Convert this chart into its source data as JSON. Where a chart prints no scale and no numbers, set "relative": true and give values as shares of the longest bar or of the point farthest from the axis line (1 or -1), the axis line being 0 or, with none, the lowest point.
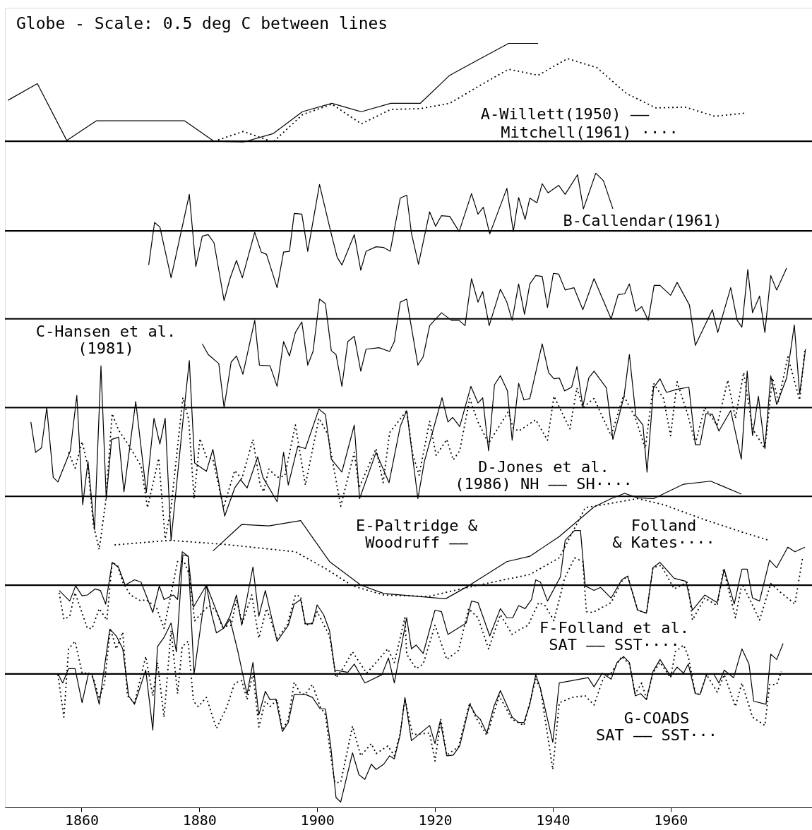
{
  "chart_data": {
    "type": "line",
    "title": "Globe - Scale: 0.5 deg C between lines",
    "relative": true,
    "grid": false,
    "xlim": [
      1847,
      1984
    ],
    "xticks": [
      1860,
      1880,
      1900,
      1920,
      1940,
      1960
    ],
    "ref_lines": [
      {
        "axis": "y",
        "value": 0.871,
        "color": "#000000"
      },
      {
        "axis": "y",
        "value": 0.753,
        "color": "#000000"
      },
      {
        "axis": "y",
        "value": 0.637,
        "color": "#000000"
      },
      {
        "axis": "y",
        "value": 0.52,
        "color": "#000000"
      },
      {
        "axis": "y",
        "value": 0.403,
        "color": "#000000"
      },
      {
        "axis": "y",
        "value": 0.286,
        "color": "#000000"
      },
      {
        "axis": "y",
        "value": 0.169,
        "color": "#000000"
      }
    ],
    "annotations": [
      "A-Willett(1950) ——",
      "Mitchell(1961) ····",
      "B-Callendar(1961)",
      "C-Hansen et al.\n(1981)",
      "D-Jones et al.\n(1986) NH —— SH····",
      "E-Paltridge &\nWoodruff ——",
      "Folland\n& Kates····",
      "F-Folland et al.\nSAT —— SST····",
      "G-COADS\nSAT —— SST···"
    ],
    "series": [
      {
        "color": "#000000",
        "line_style": "solid",
        "x": [
          1847.5,
          1852.5,
          1857.5,
          1862.5,
          1867.5,
          1872.5,
          1877.5,
          1882.5,
          1887.5,
          1892.5,
          1897.5,
          1902.5,
          1907.5,
          1912.5,
          1917.5,
          1922.5,
          1927.5,
          1932.5,
          1937.5
        ],
        "values": [
          0.925,
          0.947,
          0.872,
          0.898,
          0.898,
          0.898,
          0.898,
          0.871,
          0.87,
          0.881,
          0.91,
          0.921,
          0.91,
          0.921,
          0.921,
          0.958,
          0.979,
          1.0,
          1.0
        ]
      },
      {
        "color": "#000000",
        "line_style": "dotted",
        "x": [
          1882.5,
          1887.5,
          1892.5,
          1897.5,
          1902.5,
          1907.5,
          1912.5,
          1917.5,
          1922.5,
          1927.5,
          1932.5,
          1937.5,
          1942.5,
          1947.5,
          1952.5,
          1957.5,
          1962.5,
          1967.5,
          1972.5
        ],
        "values": [
          0.871,
          0.884,
          0.87,
          0.906,
          0.92,
          0.894,
          0.913,
          0.914,
          0.921,
          0.944,
          0.966,
          0.958,
          0.98,
          0.968,
          0.934,
          0.915,
          0.916,
          0.904,
          0.908
        ]
      },
      {
        "color": "#000000",
        "line_style": "solid",
        "x": [
          1871.4,
          1872.4,
          1873.3,
          1875.2,
          1878.3,
          1879.4,
          1880.5,
          1881.5,
          1882.5,
          1884.2,
          1885.2,
          1886.3,
          1887.3,
          1889.4,
          1890.5,
          1891.4,
          1893.2,
          1894.3,
          1895.3,
          1896.1,
          1897.4,
          1898.4,
          1900.4,
          1902.3,
          1903.4,
          1904.2,
          1906.3,
          1907.4,
          1908.3,
          1910,
          1911.3,
          1912.4,
          1914.1,
          1915.2,
          1916,
          1917.2,
          1919.1,
          1920.1,
          1921.1,
          1922.5,
          1924.1,
          1926.2,
          1927.3,
          1928.2,
          1929.3,
          1932.2,
          1933.3,
          1934.2,
          1935.3,
          1936.1,
          1937.3,
          1938.2,
          1939.2,
          1941,
          1942.1,
          1944.2,
          1945.2,
          1947.3,
          1948.6,
          1950.2
        ],
        "values": [
          0.708,
          0.764,
          0.758,
          0.691,
          0.801,
          0.706,
          0.746,
          0.748,
          0.737,
          0.661,
          0.69,
          0.714,
          0.691,
          0.751,
          0.725,
          0.722,
          0.678,
          0.725,
          0.726,
          0.776,
          0.775,
          0.726,
          0.814,
          0.752,
          0.718,
          0.708,
          0.748,
          0.701,
          0.726,
          0.732,
          0.731,
          0.726,
          0.796,
          0.8,
          0.75,
          0.709,
          0.778,
          0.759,
          0.773,
          0.772,
          0.752,
          0.802,
          0.775,
          0.784,
          0.749,
          0.809,
          0.752,
          0.797,
          0.768,
          0.796,
          0.79,
          0.815,
          0.803,
          0.813,
          0.801,
          0.827,
          0.782,
          0.829,
          0.819,
          0.782
        ]
      },
      {
        "color": "#000000",
        "line_style": "solid",
        "x": [
          1880.5,
          1881.5,
          1883.3,
          1884.2,
          1885.4,
          1886.3,
          1887.4,
          1889.4,
          1890.2,
          1892,
          1893.2,
          1894.3,
          1895.3,
          1896.3,
          1897.4,
          1898.4,
          1899.3,
          1900.4,
          1901.4,
          1902.4,
          1903.2,
          1904.2,
          1905.2,
          1906.3,
          1907.4,
          1908.3,
          1910.5,
          1912.3,
          1913.1,
          1914.1,
          1915.2,
          1915.8,
          1917.1,
          1918,
          1919.1,
          1921.1,
          1922.8,
          1924.1,
          1925.1,
          1926.2,
          1927.3,
          1928.1,
          1929.2,
          1931.1,
          1932.2,
          1933.1,
          1934.2,
          1935.2,
          1936.1,
          1937.1,
          1938.2,
          1939.1,
          1940.1,
          1941,
          1942.1,
          1943.6,
          1945.1,
          1947,
          1948.2,
          1949.9,
          1951.1,
          1952.2,
          1953,
          1954.1,
          1955.1,
          1956.2,
          1957.2,
          1958.2,
          1960,
          1961.1,
          1963.2,
          1964.2,
          1967.1,
          1968,
          1970.2,
          1971.3,
          1972.1,
          1973.1,
          1973.9,
          1975.1,
          1976,
          1977,
          1978,
          1979.7
        ],
        "values": [
          0.604,
          0.59,
          0.578,
          0.52,
          0.58,
          0.588,
          0.564,
          0.635,
          0.576,
          0.575,
          0.548,
          0.607,
          0.588,
          0.619,
          0.633,
          0.576,
          0.594,
          0.663,
          0.657,
          0.595,
          0.59,
          0.548,
          0.607,
          0.614,
          0.568,
          0.597,
          0.599,
          0.594,
          0.607,
          0.659,
          0.663,
          0.635,
          0.576,
          0.587,
          0.628,
          0.645,
          0.635,
          0.635,
          0.628,
          0.69,
          0.659,
          0.673,
          0.628,
          0.676,
          0.659,
          0.635,
          0.683,
          0.643,
          0.683,
          0.694,
          0.693,
          0.652,
          0.697,
          0.696,
          0.675,
          0.678,
          0.649,
          0.69,
          0.668,
          0.637,
          0.669,
          0.67,
          0.683,
          0.647,
          0.653,
          0.635,
          0.681,
          0.681,
          0.668,
          0.685,
          0.655,
          0.602,
          0.649,
          0.619,
          0.678,
          0.635,
          0.626,
          0.702,
          0.645,
          0.667,
          0.619,
          0.694,
          0.675,
          0.704
        ]
      },
      {
        "color": "#000000",
        "line_style": "solid",
        "x": [
          1851.4,
          1852.2,
          1853.2,
          1854.1,
          1855.2,
          1856,
          1858.1,
          1859.2,
          1860.2,
          1861.1,
          1862.2,
          1863.3,
          1864.2,
          1865.1,
          1866.3,
          1867.2,
          1869.2,
          1871,
          1872.3,
          1873.3,
          1874.2,
          1875.2,
          1877.3,
          1878.3,
          1879.2,
          1881.2,
          1882.3,
          1884.3,
          1886,
          1887,
          1888.1,
          1889.9,
          1890.8,
          1893.2,
          1894.3,
          1895.1,
          1896.7,
          1898,
          1900.3,
          1901.4,
          1902.4,
          1904.2,
          1906.3,
          1907.2,
          1910,
          1912.2,
          1914.1,
          1915.2,
          1917.1,
          1918.2,
          1921.2,
          1922.2,
          1923,
          1924.2,
          1926.1,
          1927.3,
          1928.1,
          1929.1,
          1930.1,
          1931.1,
          1932.3,
          1933.1,
          1934.2,
          1935.1,
          1936.1,
          1938.2,
          1939.3,
          1940.2,
          1941.1,
          1942,
          1943.2,
          1944.1,
          1945.1,
          1946.1,
          1947,
          1949.1,
          1950.2,
          1952.1,
          1953,
          1954.1,
          1955.3,
          1956,
          1957.1,
          1958.2,
          1959.3,
          1961.1,
          1963.1,
          1964.2,
          1965,
          1966,
          1967.1,
          1968.2,
          1970.2,
          1972,
          1973,
          1973.9,
          1974.9,
          1976,
          1977,
          1978,
          1979.7,
          1981,
          1981.9,
          1982.9
        ],
        "values": [
          0.501,
          0.461,
          0.467,
          0.52,
          0.428,
          0.422,
          0.463,
          0.536,
          0.392,
          0.449,
          0.359,
          0.575,
          0.4,
          0.478,
          0.481,
          0.409,
          0.528,
          0.408,
          0.506,
          0.472,
          0.506,
          0.345,
          0.509,
          0.582,
          0.447,
          0.436,
          0.465,
          0.377,
          0.414,
          0.425,
          0.414,
          0.455,
          0.428,
          0.396,
          0.461,
          0.418,
          0.469,
          0.466,
          0.518,
          0.511,
          0.452,
          0.435,
          0.497,
          0.4,
          0.461,
          0.421,
          0.495,
          0.516,
          0.4,
          0.449,
          0.533,
          0.501,
          0.507,
          0.495,
          0.548,
          0.526,
          0.533,
          0.463,
          0.55,
          0.562,
          0.542,
          0.477,
          0.552,
          0.53,
          0.532,
          0.604,
          0.566,
          0.558,
          0.559,
          0.542,
          0.547,
          0.574,
          0.521,
          0.559,
          0.568,
          0.546,
          0.478,
          0.535,
          0.59,
          0.509,
          0.497,
          0.435,
          0.546,
          0.558,
          0.54,
          0.544,
          0.547,
          0.471,
          0.471,
          0.512,
          0.511,
          0.489,
          0.516,
          0.452,
          0.568,
          0.483,
          0.535,
          0.466,
          0.562,
          0.524,
          0.559,
          0.629,
          0.538,
          0.597
        ]
      },
      {
        "color": "#000000",
        "line_style": "dotted",
        "x": [
          1857.8,
          1858.9,
          1860.1,
          1861.1,
          1862,
          1863,
          1864.1,
          1865.2,
          1866.3,
          1867.8,
          1870.1,
          1871.2,
          1873.1,
          1874.2,
          1875.2,
          1877.2,
          1878.2,
          1879.1,
          1880.1,
          1881.2,
          1882.3,
          1884.1,
          1886,
          1887.2,
          1889.1,
          1890.3,
          1890.9,
          1891.8,
          1893.2,
          1894.5,
          1896.3,
          1898,
          1900.3,
          1901.8,
          1904,
          1906.3,
          1907.1,
          1910,
          1911.2,
          1912.3,
          1915.2,
          1916.2,
          1917.3,
          1919.1,
          1920.2,
          1922,
          1923.1,
          1924.2,
          1925.9,
          1927.3,
          1929.1,
          1932.4,
          1933.3,
          1934.2,
          1937.1,
          1939.1,
          1940.2,
          1942.9,
          1944.1,
          1945.1,
          1947,
          1949.9,
          1952,
          1954,
          1955.7,
          1957.1,
          1958.8,
          1960,
          1961.1,
          1962.9,
          1964.2,
          1965.8,
          1967.9,
          1969.7,
          1971,
          1972.4,
          1973.9,
          1976,
          1977.3,
          1978.3,
          1979.9,
          1981.9,
          1982.8
        ],
        "values": [
          0.461,
          0.44,
          0.475,
          0.442,
          0.366,
          0.333,
          0.396,
          0.512,
          0.49,
          0.473,
          0.443,
          0.388,
          0.453,
          0.347,
          0.388,
          0.533,
          0.504,
          0.4,
          0.479,
          0.455,
          0.452,
          0.388,
          0.437,
          0.426,
          0.478,
          0.419,
          0.409,
          0.439,
          0.428,
          0.43,
          0.497,
          0.418,
          0.506,
          0.485,
          0.39,
          0.461,
          0.414,
          0.466,
          0.421,
          0.487,
          0.516,
          0.459,
          0.431,
          0.502,
          0.457,
          0.478,
          0.451,
          0.463,
          0.532,
          0.501,
          0.473,
          0.514,
          0.493,
          0.489,
          0.504,
          0.477,
          0.535,
          0.492,
          0.546,
          0.52,
          0.532,
          0.483,
          0.536,
          0.507,
          0.466,
          0.552,
          0.532,
          0.483,
          0.554,
          0.511,
          0.473,
          0.52,
          0.497,
          0.556,
          0.506,
          0.566,
          0.492,
          0.466,
          0.559,
          0.528,
          0.587,
          0.53,
          0.597
        ]
      },
      {
        "color": "#000000",
        "line_style": "solid",
        "x": [
          1882.3,
          1887.2,
          1891.8,
          1897.2,
          1902.1,
          1907.4,
          1911.3,
          1921.8,
          1925.7,
          1932.2,
          1936.1,
          1941.1,
          1947,
          1949.9,
          1952.2,
          1954.4,
          1957.1,
          1962.2,
          1966.8,
          1972
        ],
        "values": [
          0.331,
          0.366,
          0.364,
          0.371,
          0.317,
          0.286,
          0.275,
          0.268,
          0.285,
          0.317,
          0.324,
          0.35,
          0.389,
          0.4,
          0.407,
          0.401,
          0.4,
          0.419,
          0.423,
          0.406
        ]
      },
      {
        "color": "#000000",
        "line_style": "dotted",
        "x": [
          1865.6,
          1875,
          1883.9,
          1896.3,
          1901.6,
          1906,
          1911.3,
          1918.9,
          1923.3,
          1928.6,
          1936.1,
          1941.1,
          1945.5,
          1954.4,
          1958.8,
          1965.5,
          1972.1,
          1976.7
        ],
        "values": [
          0.339,
          0.345,
          0.34,
          0.33,
          0.307,
          0.285,
          0.273,
          0.271,
          0.279,
          0.288,
          0.3,
          0.322,
          0.388,
          0.4,
          0.392,
          0.373,
          0.356,
          0.345
        ]
      },
      {
        "color": "#000000",
        "line_style": "solid",
        "x": [
          1856.2,
          1858,
          1859,
          1860.1,
          1861,
          1862.3,
          1863.2,
          1864.1,
          1865.2,
          1866.3,
          1867.4,
          1869,
          1870.1,
          1872.1,
          1873.2,
          1874,
          1875.6,
          1876.3,
          1877.1,
          1878.1,
          1879,
          1881.2,
          1883,
          1884.1,
          1885.2,
          1886.3,
          1887.2,
          1889.1,
          1890.1,
          1891.2,
          1893.2,
          1895.1,
          1896.1,
          1897.2,
          1898,
          1899.2,
          1900,
          1901.1,
          1902.1,
          1903,
          1905.2,
          1906.3,
          1908.1,
          1911,
          1912.1,
          1913.1,
          1915.2,
          1916,
          1916.8,
          1918,
          1920,
          1921.1,
          1922.2,
          1925.3,
          1926.2,
          1927.3,
          1929.3,
          1931.1,
          1932.2,
          1933.2,
          1934.2,
          1935.3,
          1936.4,
          1937.1,
          1937.9,
          1939.1,
          1941.3,
          1942.1,
          1943.7,
          1944.7,
          1945.5,
          1947,
          1948.1,
          1949.9,
          1951.7,
          1952.7,
          1954.4,
          1955.9,
          1957,
          1958.2,
          1960.6,
          1962.6,
          1963.7,
          1965.8,
          1967.9,
          1969.1,
          1970.8,
          1972.1,
          1973,
          1973.9,
          1975.1,
          1976.8,
          1978,
          1979.9,
          1981.1,
          1982.8
        ],
        "values": [
          0.279,
          0.265,
          0.285,
          0.272,
          0.273,
          0.281,
          0.279,
          0.261,
          0.316,
          0.309,
          0.286,
          0.293,
          0.29,
          0.25,
          0.285,
          0.267,
          0.273,
          0.267,
          0.33,
          0.324,
          0.257,
          0.286,
          0.25,
          0.229,
          0.245,
          0.273,
          0.233,
          0.31,
          0.245,
          0.279,
          0.212,
          0.233,
          0.261,
          0.267,
          0.235,
          0.235,
          0.26,
          0.247,
          0.226,
          0.174,
          0.171,
          0.182,
          0.157,
          0.168,
          0.19,
          0.157,
          0.243,
          0.202,
          0.207,
          0.196,
          0.253,
          0.251,
          0.221,
          0.236,
          0.265,
          0.263,
          0.219,
          0.255,
          0.243,
          0.243,
          0.259,
          0.255,
          0.267,
          0.293,
          0.29,
          0.265,
          0.297,
          0.345,
          0.358,
          0.358,
          0.285,
          0.279,
          0.283,
          0.269,
          0.293,
          0.298,
          0.253,
          0.249,
          0.309,
          0.316,
          0.295,
          0.291,
          0.253,
          0.273,
          0.263,
          0.307,
          0.261,
          0.307,
          0.307,
          0.269,
          0.265,
          0.319,
          0.309,
          0.336,
          0.33,
          0.336
        ]
      },
      {
        "color": "#000000",
        "line_style": "dotted",
        "x": [
          1856.2,
          1857,
          1858,
          1858.9,
          1861,
          1861.8,
          1863,
          1864.3,
          1865.2,
          1866.1,
          1867,
          1868.3,
          1870.1,
          1870.9,
          1872.7,
          1874,
          1875,
          1876.3,
          1877.4,
          1878.3,
          1879.2,
          1881.6,
          1882.8,
          1883.9,
          1885.4,
          1886.3,
          1887.3,
          1888.9,
          1890.1,
          1891.4,
          1893.2,
          1894.9,
          1896.3,
          1897.2,
          1898,
          1899.2,
          1900,
          1902.1,
          1903.2,
          1904.2,
          1906,
          1908.4,
          1910,
          1912,
          1913.1,
          1914.9,
          1915.2,
          1916.8,
          1918,
          1920,
          1922,
          1924,
          1925.7,
          1927.3,
          1929.1,
          1931.1,
          1933.1,
          1934.5,
          1935.8,
          1937.6,
          1938.7,
          1940.2,
          1942,
          1943.7,
          1945.1,
          1945.7,
          1946.8,
          1949.9,
          1951.7,
          1952.7,
          1954.4,
          1955.9,
          1957,
          1958.4,
          1960.6,
          1962.9,
          1963.7,
          1965.8,
          1967.9,
          1969,
          1971,
          1972.1,
          1973.7,
          1975.1,
          1977,
          1978.6,
          1981.1,
          1982.4
        ],
        "values": [
          0.276,
          0.241,
          0.245,
          0.276,
          0.229,
          0.229,
          0.255,
          0.24,
          0.316,
          0.312,
          0.29,
          0.273,
          0.265,
          0.267,
          0.257,
          0.229,
          0.267,
          0.317,
          0.317,
          0.3,
          0.239,
          0.259,
          0.253,
          0.231,
          0.233,
          0.267,
          0.236,
          0.273,
          0.216,
          0.255,
          0.216,
          0.233,
          0.273,
          0.271,
          0.233,
          0.236,
          0.251,
          0.219,
          0.164,
          0.174,
          0.198,
          0.17,
          0.184,
          0.202,
          0.184,
          0.243,
          0.195,
          0.176,
          0.182,
          0.233,
          0.188,
          0.2,
          0.255,
          0.243,
          0.202,
          0.247,
          0.221,
          0.228,
          0.233,
          0.263,
          0.259,
          0.239,
          0.295,
          0.322,
          0.317,
          0.251,
          0.25,
          0.263,
          0.291,
          0.298,
          0.253,
          0.249,
          0.309,
          0.312,
          0.281,
          0.29,
          0.24,
          0.269,
          0.259,
          0.307,
          0.243,
          0.288,
          0.263,
          0.24,
          0.288,
          0.277,
          0.261,
          0.322
        ]
      },
      {
        "color": "#000000",
        "line_style": "solid",
        "x": [
          1856,
          1856.8,
          1857.8,
          1858.9,
          1860.1,
          1861.2,
          1861.8,
          1863,
          1864.8,
          1865.9,
          1867,
          1868,
          1869,
          1870.9,
          1872.1,
          1872.9,
          1874,
          1875.2,
          1876.1,
          1877.2,
          1878.1,
          1879.1,
          1881.2,
          1882.1,
          1882.9,
          1884.1,
          1885.2,
          1886.5,
          1888.1,
          1889.1,
          1890.1,
          1891.2,
          1892,
          1893,
          1894.1,
          1895.1,
          1896.1,
          1898,
          1899.2,
          1900.5,
          1901.4,
          1902.3,
          1903.2,
          1904,
          1906,
          1907.1,
          1908.1,
          1909.2,
          1910,
          1911.3,
          1912.3,
          1913.1,
          1914.1,
          1914.9,
          1916,
          1919.1,
          1920,
          1920.9,
          1922,
          1923.1,
          1924.2,
          1925.9,
          1926.9,
          1927.7,
          1928.8,
          1930,
          1931.1,
          1933.1,
          1934.2,
          1935.1,
          1936.1,
          1937.1,
          1937.9,
          1940,
          1941.1,
          1946,
          1947,
          1948.4,
          1949.9,
          1950.9,
          1952,
          1953,
          1954,
          1954.9,
          1955.9,
          1957,
          1958.2,
          1960,
          1961.1,
          1962.2,
          1963,
          1964.2,
          1965,
          1966.1,
          1967.3,
          1968.2,
          1969.1,
          1970.7,
          1972.1,
          1973.3,
          1974.1,
          1976.2,
          1977,
          1978,
          1979.1
        ],
        "values": [
          0.169,
          0.157,
          0.176,
          0.176,
          0.131,
          0.17,
          0.168,
          0.129,
          0.228,
          0.219,
          0.202,
          0.14,
          0.129,
          0.174,
          0.095,
          0.205,
          0.217,
          0.236,
          0.198,
          0.326,
          0.324,
          0.169,
          0.286,
          0.247,
          0.223,
          0.229,
          0.241,
          0.2,
          0.142,
          0.184,
          0.115,
          0.146,
          0.135,
          0.136,
          0.093,
          0.105,
          0.142,
          0.142,
          0.138,
          0.123,
          0.123,
          0.074,
          0.006,
          0,
          0.065,
          0.036,
          0.03,
          0.05,
          0.043,
          0.05,
          0.061,
          0.057,
          0.089,
          0.138,
          0.081,
          0.101,
          0.077,
          0.107,
          0.061,
          0.062,
          0.074,
          0.129,
          0.115,
          0.109,
          0.091,
          0.126,
          0.147,
          0.112,
          0.105,
          0.105,
          0.129,
          0.168,
          0.15,
          0.079,
          0.157,
          0.164,
          0.152,
          0.17,
          0.162,
          0.184,
          0.192,
          0.184,
          0.14,
          0.143,
          0.135,
          0.172,
          0.188,
          0.166,
          0.178,
          0.17,
          0.182,
          0.143,
          0.142,
          0.168,
          0.169,
          0.157,
          0.174,
          0.164,
          0.202,
          0.182,
          0.133,
          0.129,
          0.195,
          0.188,
          0.209
        ]
      },
      {
        "color": "#000000",
        "line_style": "dotted",
        "x": [
          1856,
          1857,
          1857.8,
          1858.9,
          1860.1,
          1861.2,
          1862,
          1863,
          1863.9,
          1864.9,
          1865.9,
          1867,
          1867.8,
          1869,
          1870.9,
          1872.1,
          1872.9,
          1874,
          1875.2,
          1876.3,
          1877.1,
          1878.1,
          1879,
          1879.8,
          1881.2,
          1882.9,
          1884.7,
          1886,
          1887.2,
          1888.1,
          1889.1,
          1890.1,
          1891.2,
          1892,
          1893.2,
          1894.1,
          1895.1,
          1896.1,
          1897.2,
          1898,
          1899.2,
          1900.5,
          1901.4,
          1902.3,
          1903,
          1904,
          1906,
          1907.4,
          1909.2,
          1910,
          1912,
          1913.1,
          1914.1,
          1914.9,
          1916.2,
          1919.1,
          1920,
          1921,
          1922,
          1924,
          1925.9,
          1926.9,
          1928.8,
          1930.9,
          1933.1,
          1935.1,
          1937.1,
          1937.9,
          1940,
          1941.1,
          1943.3,
          1945.5,
          1947,
          1948.6,
          1949.9,
          1951.7,
          1953,
          1954,
          1955.1,
          1955.9,
          1957,
          1958.2,
          1960,
          1960.8,
          1962.2,
          1963,
          1964.2,
          1965,
          1966.1,
          1967.9,
          1969.1,
          1971,
          1972.1,
          1973.9,
          1976,
          1976.8,
          1978,
          1978.8
        ],
        "values": [
          0.168,
          0.112,
          0.202,
          0.212,
          0.17,
          0.17,
          0.164,
          0.136,
          0.157,
          0.229,
          0.202,
          0.224,
          0.14,
          0.131,
          0.192,
          0.14,
          0.184,
          0.112,
          0.226,
          0.143,
          0.205,
          0.212,
          0.133,
          0.126,
          0.138,
          0.097,
          0.126,
          0.157,
          0.16,
          0.135,
          0.17,
          0.099,
          0.133,
          0.126,
          0.135,
          0.095,
          0.109,
          0.158,
          0.143,
          0.142,
          0.155,
          0.126,
          0.115,
          0.061,
          0.026,
          0.026,
          0.1,
          0.061,
          0.077,
          0.064,
          0.074,
          0.061,
          0.091,
          0.136,
          0.089,
          0.091,
          0.054,
          0.109,
          0.062,
          0.073,
          0.131,
          0.112,
          0.088,
          0.14,
          0.109,
          0.101,
          0.162,
          0.15,
          0.043,
          0.131,
          0.138,
          0.14,
          0.128,
          0.164,
          0.17,
          0.192,
          0.182,
          0.143,
          0.157,
          0.136,
          0.17,
          0.184,
          0.164,
          0.198,
          0.207,
          0.192,
          0.143,
          0.142,
          0.168,
          0.145,
          0.168,
          0.126,
          0.157,
          0.112,
          0.101,
          0.155,
          0.155,
          0.172
        ]
      }
    ]
  }
}
